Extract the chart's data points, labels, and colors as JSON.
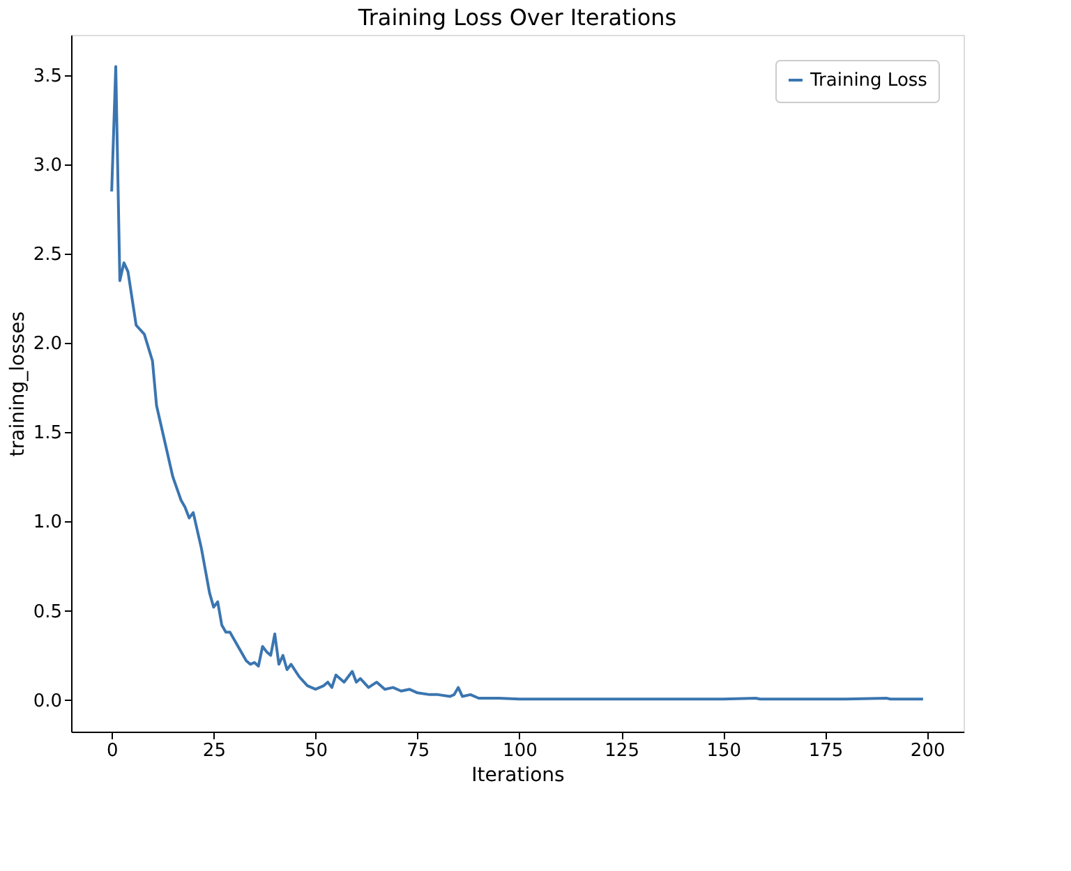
{
  "chart_data": {
    "type": "line",
    "title": "Training Loss Over Iterations",
    "xlabel": "Iterations",
    "ylabel": "training_losses",
    "series": [
      {
        "name": "Training Loss",
        "color": "#3a75b0",
        "x": [
          0,
          1,
          2,
          3,
          4,
          5,
          6,
          8,
          10,
          11,
          13,
          15,
          17,
          18,
          19,
          20,
          22,
          24,
          25,
          26,
          27,
          28,
          29,
          31,
          33,
          34,
          35,
          36,
          37,
          38,
          39,
          40,
          41,
          42,
          43,
          44,
          46,
          48,
          50,
          52,
          53,
          54,
          55,
          57,
          59,
          60,
          61,
          63,
          65,
          67,
          69,
          71,
          73,
          75,
          78,
          80,
          83,
          84,
          85,
          86,
          88,
          90,
          95,
          100,
          110,
          120,
          130,
          140,
          150,
          158,
          159,
          170,
          180,
          190,
          191,
          199
        ],
        "values": [
          2.85,
          3.55,
          2.35,
          2.45,
          2.4,
          2.25,
          2.1,
          2.05,
          1.9,
          1.65,
          1.45,
          1.25,
          1.12,
          1.08,
          1.02,
          1.05,
          0.85,
          0.6,
          0.52,
          0.55,
          0.42,
          0.38,
          0.38,
          0.3,
          0.22,
          0.2,
          0.21,
          0.19,
          0.3,
          0.27,
          0.25,
          0.37,
          0.2,
          0.25,
          0.17,
          0.2,
          0.13,
          0.08,
          0.06,
          0.08,
          0.1,
          0.07,
          0.14,
          0.1,
          0.16,
          0.1,
          0.12,
          0.07,
          0.1,
          0.06,
          0.07,
          0.05,
          0.06,
          0.04,
          0.03,
          0.03,
          0.02,
          0.03,
          0.07,
          0.02,
          0.03,
          0.01,
          0.01,
          0.005,
          0.005,
          0.005,
          0.005,
          0.005,
          0.005,
          0.01,
          0.005,
          0.005,
          0.005,
          0.01,
          0.005,
          0.005
        ]
      }
    ],
    "xlim": [
      -9.95,
      208.95
    ],
    "xticks": [
      0,
      25,
      50,
      75,
      100,
      125,
      150,
      175,
      200
    ],
    "ylim": [
      -0.1775,
      3.7275
    ],
    "yticks": [
      {
        "value": 0,
        "label": "0.0"
      },
      0.5,
      {
        "value": 1,
        "label": "1.0"
      },
      1.5,
      {
        "value": 2,
        "label": "2.0"
      },
      2.5,
      {
        "value": 3,
        "label": "3.0"
      },
      3.5
    ],
    "grid": false,
    "legend": "top right",
    "line_style": "solid",
    "marker": "none"
  }
}
